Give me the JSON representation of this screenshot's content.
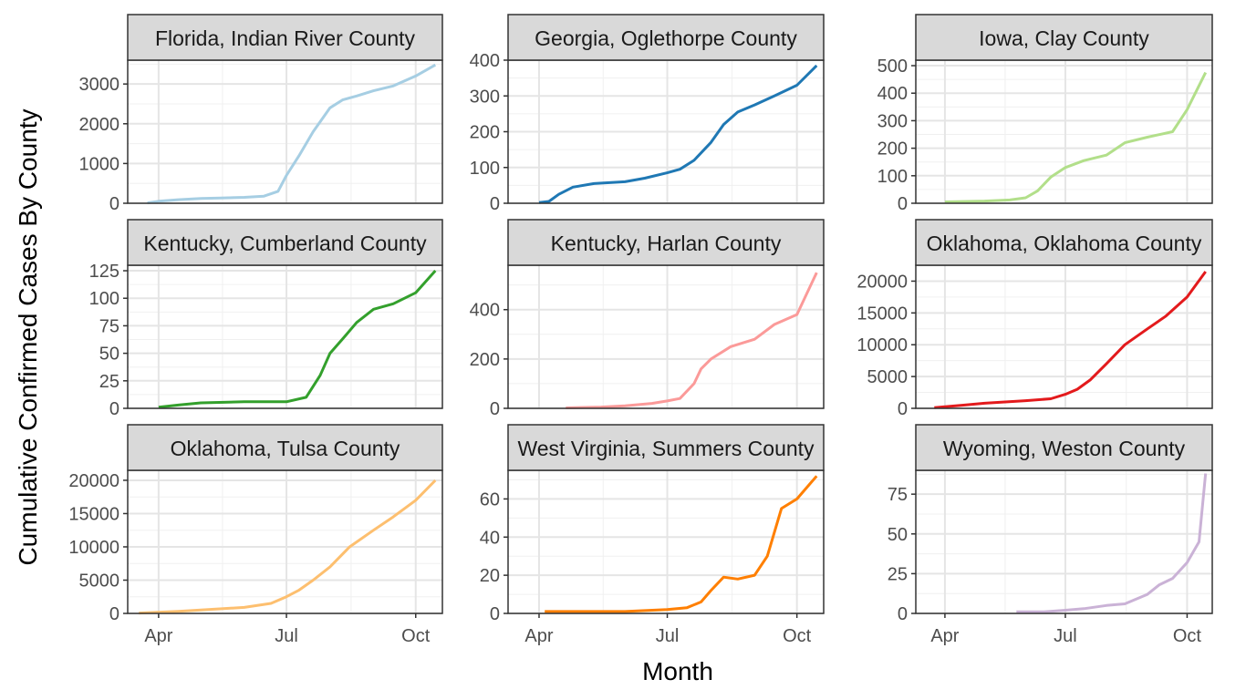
{
  "chart_data": {
    "type": "line",
    "layout": "facet-grid-3x3",
    "xlabel": "Month",
    "ylabel": "Cumulative Confirmed Cases By County",
    "x_ticks": [
      "Apr",
      "Jul",
      "Oct"
    ],
    "grid": true,
    "x_domain": [
      "2020-03-10",
      "2020-10-20"
    ],
    "panels": [
      {
        "title": "Florida, Indian River County",
        "color": "#a6cee3",
        "ylim": [
          0,
          3600
        ],
        "y_ticks": [
          0,
          1000,
          2000,
          3000
        ],
        "x": [
          "2020-03-24",
          "2020-04-01",
          "2020-04-15",
          "2020-05-01",
          "2020-05-15",
          "2020-06-01",
          "2020-06-15",
          "2020-06-25",
          "2020-07-01",
          "2020-07-10",
          "2020-07-20",
          "2020-08-01",
          "2020-08-10",
          "2020-08-20",
          "2020-09-01",
          "2020-09-15",
          "2020-10-01",
          "2020-10-15"
        ],
        "y": [
          10,
          50,
          90,
          120,
          130,
          150,
          180,
          300,
          700,
          1200,
          1800,
          2400,
          2600,
          2700,
          2830,
          2950,
          3200,
          3480
        ]
      },
      {
        "title": "Georgia, Oglethorpe County",
        "color": "#1f78b4",
        "ylim": [
          0,
          400
        ],
        "y_ticks": [
          0,
          100,
          200,
          300,
          400
        ],
        "x": [
          "2020-04-01",
          "2020-04-08",
          "2020-04-15",
          "2020-04-25",
          "2020-05-10",
          "2020-06-01",
          "2020-06-15",
          "2020-07-01",
          "2020-07-10",
          "2020-07-20",
          "2020-08-01",
          "2020-08-10",
          "2020-08-20",
          "2020-09-01",
          "2020-09-15",
          "2020-10-01",
          "2020-10-15"
        ],
        "y": [
          2,
          5,
          25,
          45,
          55,
          60,
          70,
          85,
          95,
          120,
          170,
          220,
          255,
          275,
          300,
          330,
          385
        ]
      },
      {
        "title": "Iowa, Clay County",
        "color": "#b2df8a",
        "ylim": [
          0,
          520
        ],
        "y_ticks": [
          0,
          100,
          200,
          300,
          400,
          500
        ],
        "x": [
          "2020-04-01",
          "2020-05-01",
          "2020-05-20",
          "2020-06-01",
          "2020-06-10",
          "2020-06-20",
          "2020-07-01",
          "2020-07-15",
          "2020-08-01",
          "2020-08-15",
          "2020-09-01",
          "2020-09-20",
          "2020-10-01",
          "2020-10-15"
        ],
        "y": [
          5,
          8,
          12,
          20,
          45,
          95,
          130,
          155,
          175,
          220,
          240,
          260,
          340,
          475
        ]
      },
      {
        "title": "Kentucky, Cumberland County",
        "color": "#33a02c",
        "ylim": [
          0,
          130
        ],
        "y_ticks": [
          0,
          25,
          50,
          75,
          100,
          125
        ],
        "x": [
          "2020-04-01",
          "2020-04-15",
          "2020-05-01",
          "2020-06-01",
          "2020-07-01",
          "2020-07-15",
          "2020-07-25",
          "2020-08-01",
          "2020-08-10",
          "2020-08-20",
          "2020-09-01",
          "2020-09-15",
          "2020-10-01",
          "2020-10-15"
        ],
        "y": [
          1,
          3,
          5,
          6,
          6,
          10,
          30,
          50,
          63,
          78,
          90,
          95,
          105,
          125
        ]
      },
      {
        "title": "Kentucky, Harlan County",
        "color": "#fb9a99",
        "ylim": [
          0,
          580
        ],
        "y_ticks": [
          0,
          200,
          400
        ],
        "x": [
          "2020-04-20",
          "2020-05-15",
          "2020-06-01",
          "2020-06-20",
          "2020-07-01",
          "2020-07-10",
          "2020-07-20",
          "2020-07-25",
          "2020-08-01",
          "2020-08-15",
          "2020-09-01",
          "2020-09-15",
          "2020-10-01",
          "2020-10-15"
        ],
        "y": [
          2,
          5,
          10,
          20,
          30,
          40,
          100,
          160,
          200,
          250,
          280,
          340,
          380,
          550
        ]
      },
      {
        "title": "Oklahoma, Oklahoma County",
        "color": "#e31a1c",
        "ylim": [
          0,
          22500
        ],
        "y_ticks": [
          0,
          5000,
          10000,
          15000,
          20000
        ],
        "x": [
          "2020-03-24",
          "2020-04-15",
          "2020-05-01",
          "2020-06-01",
          "2020-06-20",
          "2020-07-01",
          "2020-07-10",
          "2020-07-20",
          "2020-08-01",
          "2020-08-15",
          "2020-09-01",
          "2020-09-15",
          "2020-10-01",
          "2020-10-15"
        ],
        "y": [
          100,
          500,
          800,
          1200,
          1500,
          2200,
          3000,
          4500,
          7000,
          10000,
          12500,
          14500,
          17500,
          21500
        ]
      },
      {
        "title": "Oklahoma, Tulsa County",
        "color": "#fdbf6f",
        "ylim": [
          0,
          21500
        ],
        "y_ticks": [
          0,
          5000,
          10000,
          15000,
          20000
        ],
        "x": [
          "2020-03-18",
          "2020-04-15",
          "2020-05-01",
          "2020-06-01",
          "2020-06-20",
          "2020-07-01",
          "2020-07-10",
          "2020-07-20",
          "2020-08-01",
          "2020-08-15",
          "2020-09-01",
          "2020-09-15",
          "2020-10-01",
          "2020-10-15"
        ],
        "y": [
          50,
          300,
          500,
          900,
          1500,
          2500,
          3500,
          5000,
          7000,
          10000,
          12500,
          14500,
          17000,
          20000
        ]
      },
      {
        "title": "West Virginia, Summers County",
        "color": "#ff7f00",
        "ylim": [
          0,
          75
        ],
        "y_ticks": [
          0,
          20,
          40,
          60
        ],
        "x": [
          "2020-04-05",
          "2020-05-01",
          "2020-06-01",
          "2020-07-01",
          "2020-07-15",
          "2020-07-25",
          "2020-08-01",
          "2020-08-10",
          "2020-08-20",
          "2020-09-01",
          "2020-09-10",
          "2020-09-20",
          "2020-10-01",
          "2020-10-15"
        ],
        "y": [
          1,
          1,
          1,
          2,
          3,
          6,
          12,
          19,
          18,
          20,
          30,
          55,
          60,
          72
        ]
      },
      {
        "title": "Wyoming, Weston County",
        "color": "#cab2d6",
        "ylim": [
          0,
          90
        ],
        "y_ticks": [
          0,
          25,
          50,
          75
        ],
        "x": [
          "2020-05-25",
          "2020-06-15",
          "2020-07-01",
          "2020-07-15",
          "2020-08-01",
          "2020-08-15",
          "2020-09-01",
          "2020-09-10",
          "2020-09-20",
          "2020-10-01",
          "2020-10-10",
          "2020-10-15"
        ],
        "y": [
          1,
          1,
          2,
          3,
          5,
          6,
          12,
          18,
          22,
          32,
          45,
          88
        ]
      }
    ]
  }
}
